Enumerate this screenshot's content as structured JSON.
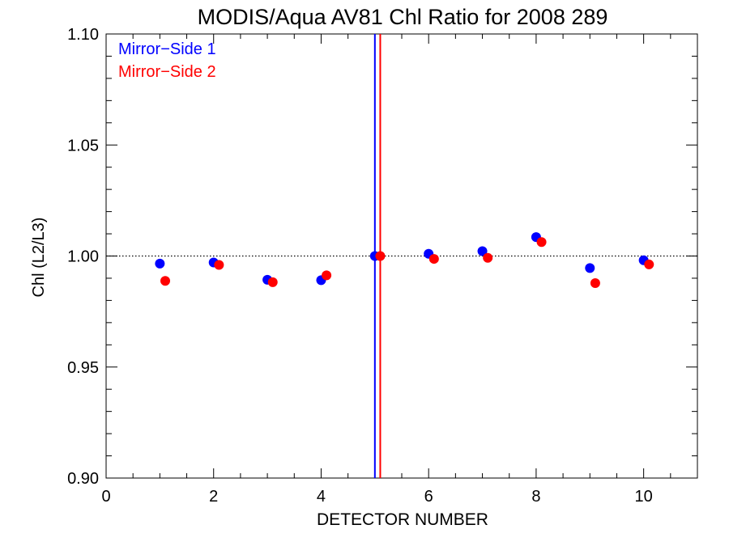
{
  "chart_data": {
    "type": "scatter",
    "title": "MODIS/Aqua AV81 Chl Ratio for 2008 289",
    "xlabel": "DETECTOR NUMBER",
    "ylabel": "Chl (L2/L3)",
    "xlim": [
      0,
      11
    ],
    "ylim": [
      0.9,
      1.1
    ],
    "x_ticks": [
      0,
      2,
      4,
      6,
      8,
      10
    ],
    "x_tick_labels": [
      "0",
      "2",
      "4",
      "6",
      "8",
      "10"
    ],
    "y_ticks": [
      0.9,
      0.95,
      1.0,
      1.05,
      1.1
    ],
    "y_tick_labels": [
      "0.90",
      "0.95",
      "1.00",
      "1.05",
      "1.10"
    ],
    "reference_line": {
      "y": 1.0,
      "style": "dotted",
      "color": "#000000"
    },
    "legend": {
      "placement": "top-left"
    },
    "series": [
      {
        "name": "Mirror−Side 1",
        "color": "#0000ff",
        "x": [
          1,
          2,
          3,
          4,
          5,
          6,
          7,
          8,
          9,
          10
        ],
        "y": [
          0.9966,
          0.9971,
          0.9893,
          0.9891,
          1.0,
          1.001,
          1.0022,
          1.0085,
          0.9946,
          0.9981
        ],
        "vline_x": 5.0
      },
      {
        "name": "Mirror−Side 2",
        "color": "#ff0000",
        "x": [
          1.1,
          2.1,
          3.1,
          4.1,
          5.1,
          6.1,
          7.1,
          8.1,
          9.1,
          10.1
        ],
        "y": [
          0.9888,
          0.996,
          0.9882,
          0.9913,
          1.0,
          0.9987,
          0.9992,
          1.0063,
          0.9878,
          0.9962
        ],
        "vline_x": 5.1
      }
    ]
  }
}
